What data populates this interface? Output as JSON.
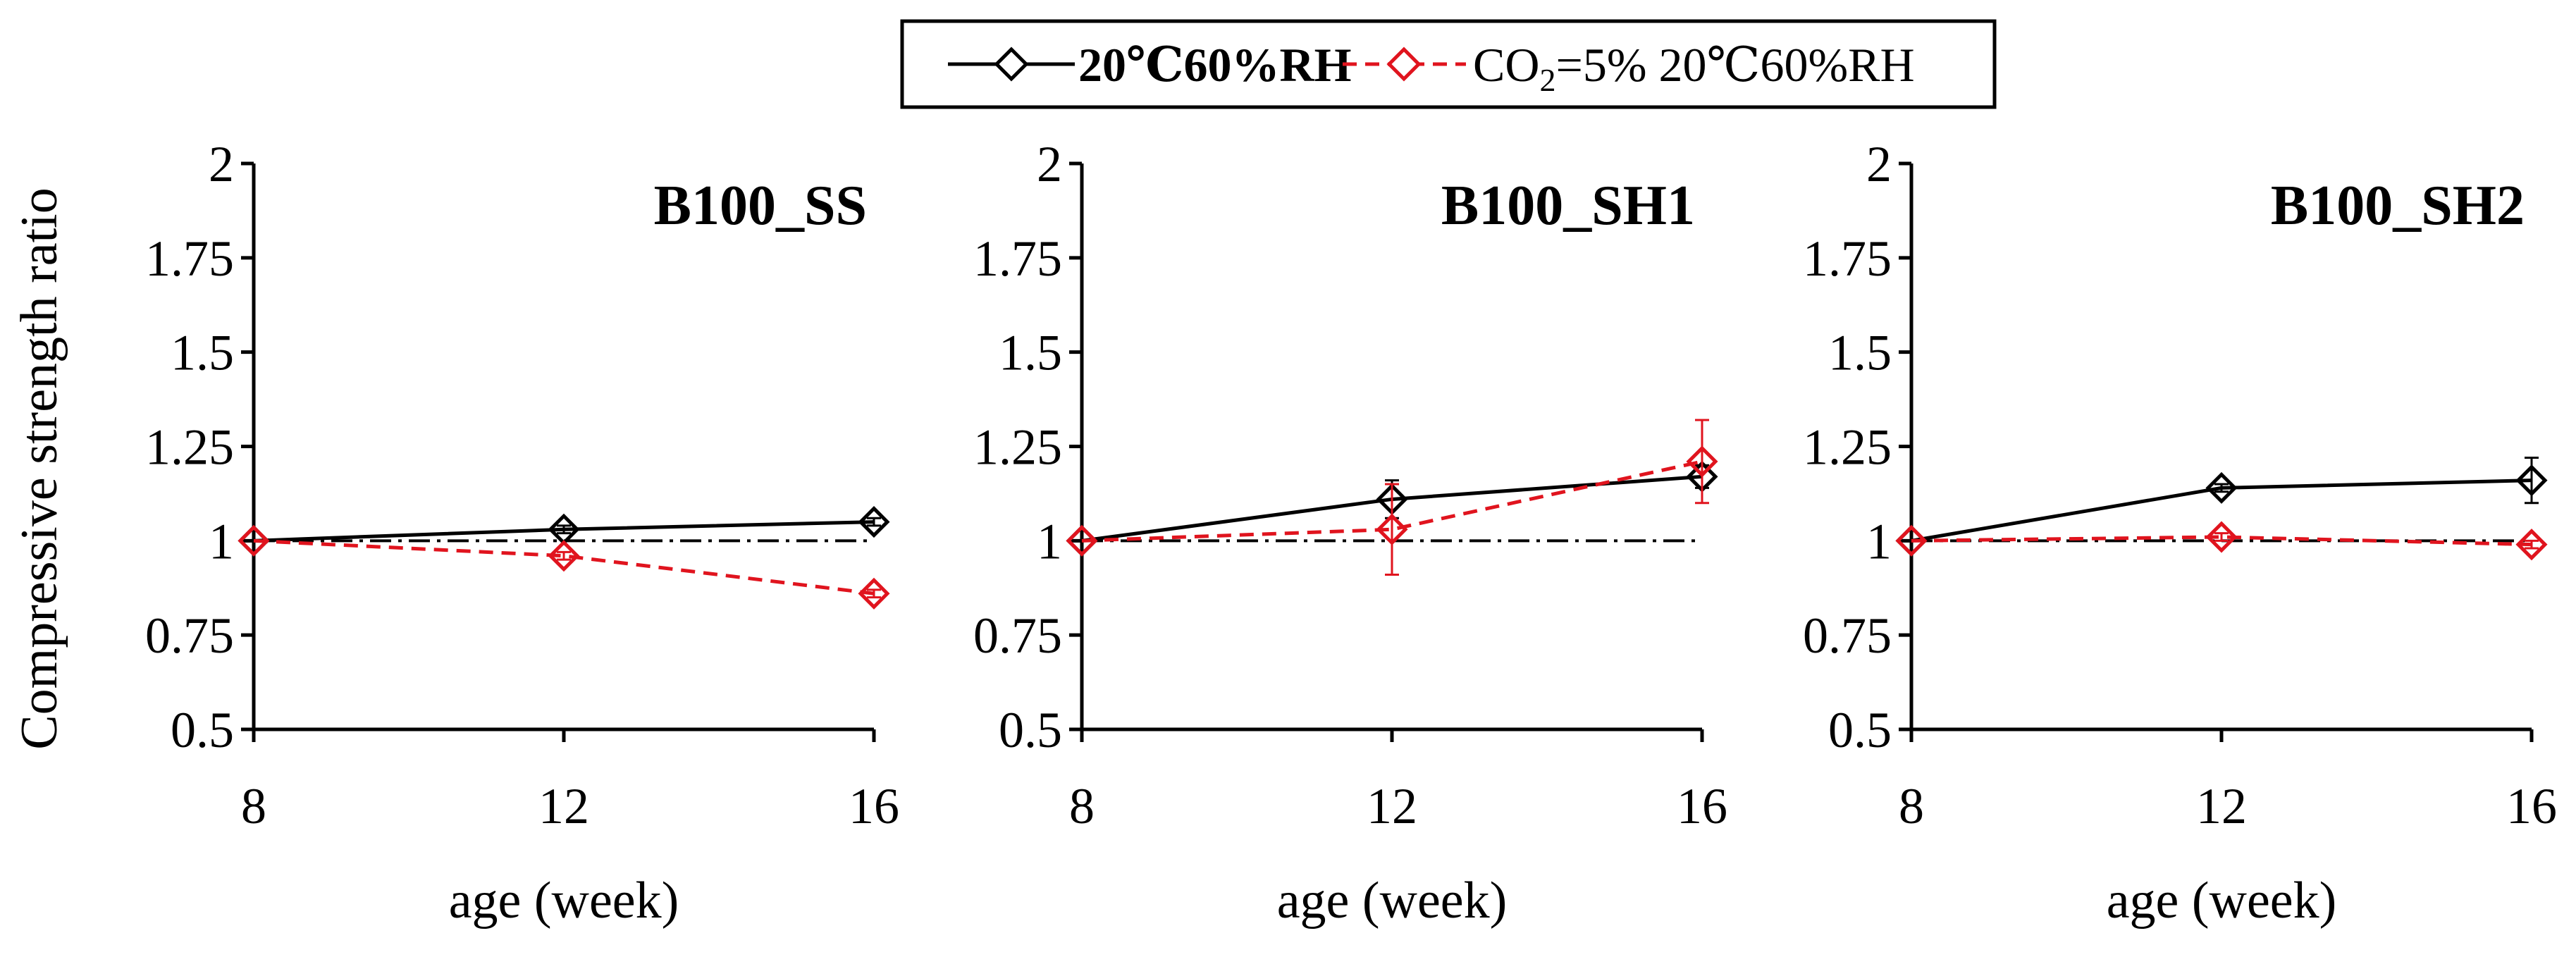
{
  "ylabel": "Compressive strength ratio",
  "legend": [
    {
      "label": "20℃60%RH",
      "color": "#000000",
      "dash": "solid"
    },
    {
      "label_html_parts": [
        "CO",
        "2",
        "=5% 20℃60%RH"
      ],
      "label": "CO₂=5% 20℃60%RH",
      "color": "#e0141e",
      "dash": "dashed"
    }
  ],
  "chart_data": [
    {
      "type": "line",
      "title": "B100_SS",
      "xlabel": "age (week)",
      "x": [
        8,
        12,
        16
      ],
      "xlim": [
        8,
        16
      ],
      "ylim": [
        0.5,
        2
      ],
      "xticks": [
        "8",
        "12",
        "16"
      ],
      "yticks": [
        "0.5",
        "0.75",
        "1",
        "1.25",
        "1.5",
        "1.75",
        "2"
      ],
      "series": [
        {
          "name": "20℃60%RH",
          "values": [
            1.0,
            1.03,
            1.05
          ],
          "err": [
            0,
            0.01,
            0.01
          ]
        },
        {
          "name": "CO₂=5% 20℃60%RH",
          "values": [
            1.0,
            0.96,
            0.86
          ],
          "err": [
            0,
            0.01,
            0.01
          ]
        }
      ],
      "reference_line": 1
    },
    {
      "type": "line",
      "title": "B100_SH1",
      "xlabel": "age (week)",
      "x": [
        8,
        12,
        16
      ],
      "xlim": [
        8,
        16
      ],
      "ylim": [
        0.5,
        2
      ],
      "xticks": [
        "8",
        "12",
        "16"
      ],
      "yticks": [
        "0.5",
        "0.75",
        "1",
        "1.25",
        "1.5",
        "1.75",
        "2"
      ],
      "series": [
        {
          "name": "20℃60%RH",
          "values": [
            1.0,
            1.11,
            1.17
          ],
          "err": [
            0,
            0.05,
            0.03
          ]
        },
        {
          "name": "CO₂=5% 20℃60%RH",
          "values": [
            1.0,
            1.03,
            1.21
          ],
          "err": [
            0,
            0.12,
            0.11
          ]
        }
      ],
      "reference_line": 1
    },
    {
      "type": "line",
      "title": "B100_SH2",
      "xlabel": "age (week)",
      "x": [
        8,
        12,
        16
      ],
      "xlim": [
        8,
        16
      ],
      "ylim": [
        0.5,
        2
      ],
      "xticks": [
        "8",
        "12",
        "16"
      ],
      "yticks": [
        "0.5",
        "0.75",
        "1",
        "1.25",
        "1.5",
        "1.75",
        "2"
      ],
      "series": [
        {
          "name": "20℃60%RH",
          "values": [
            1.0,
            1.14,
            1.16
          ],
          "err": [
            0,
            0.01,
            0.06
          ]
        },
        {
          "name": "CO₂=5% 20℃60%RH",
          "values": [
            1.0,
            1.01,
            0.99
          ],
          "err": [
            0,
            0.01,
            0.01
          ]
        }
      ],
      "reference_line": 1
    }
  ]
}
